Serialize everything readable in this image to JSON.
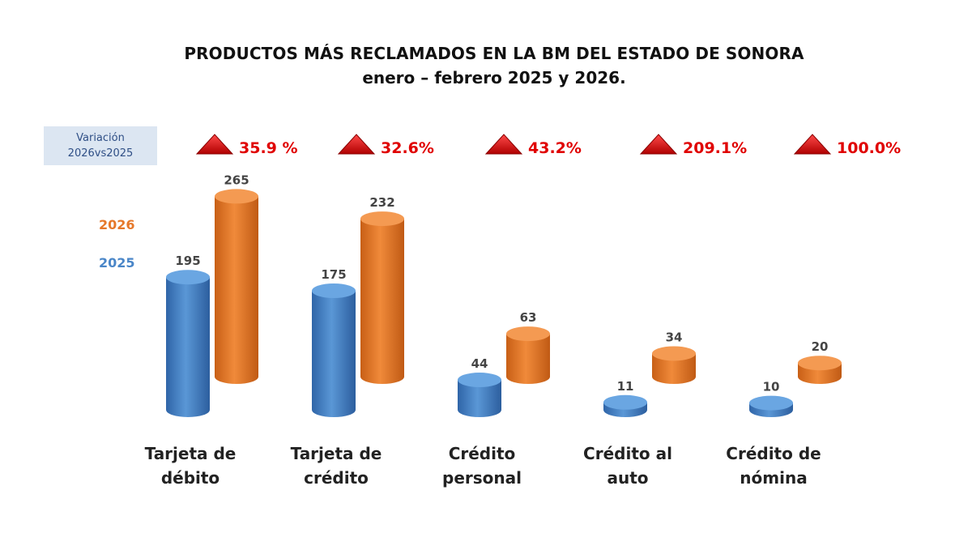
{
  "chart_data": {
    "type": "bar",
    "title": "PRODUCTOS MÁS RECLAMADOS EN LA BM DEL ESTADO DE SONORA",
    "subtitle": "enero – febrero 2025 y 2026.",
    "categories": [
      [
        "Tarjeta de",
        "débito"
      ],
      [
        "Tarjeta de",
        "crédito"
      ],
      [
        "Crédito",
        "personal"
      ],
      [
        "Crédito al",
        "auto"
      ],
      [
        "Crédito de",
        "nómina"
      ]
    ],
    "series": [
      {
        "name": "2025",
        "color": "#4a86c8",
        "values": [
          195,
          175,
          44,
          11,
          10
        ]
      },
      {
        "name": "2026",
        "color": "#e6782a",
        "values": [
          265,
          232,
          63,
          34,
          20
        ]
      }
    ],
    "variation": {
      "label_line1": "Variación",
      "label_line2": "2026vs2025",
      "values": [
        "35.9 %",
        "32.6%",
        "43.2%",
        "209.1%",
        "100.0%"
      ],
      "color": "#e00000"
    },
    "legend_position": "left",
    "grid": false,
    "ylim": [
      0,
      265
    ]
  }
}
